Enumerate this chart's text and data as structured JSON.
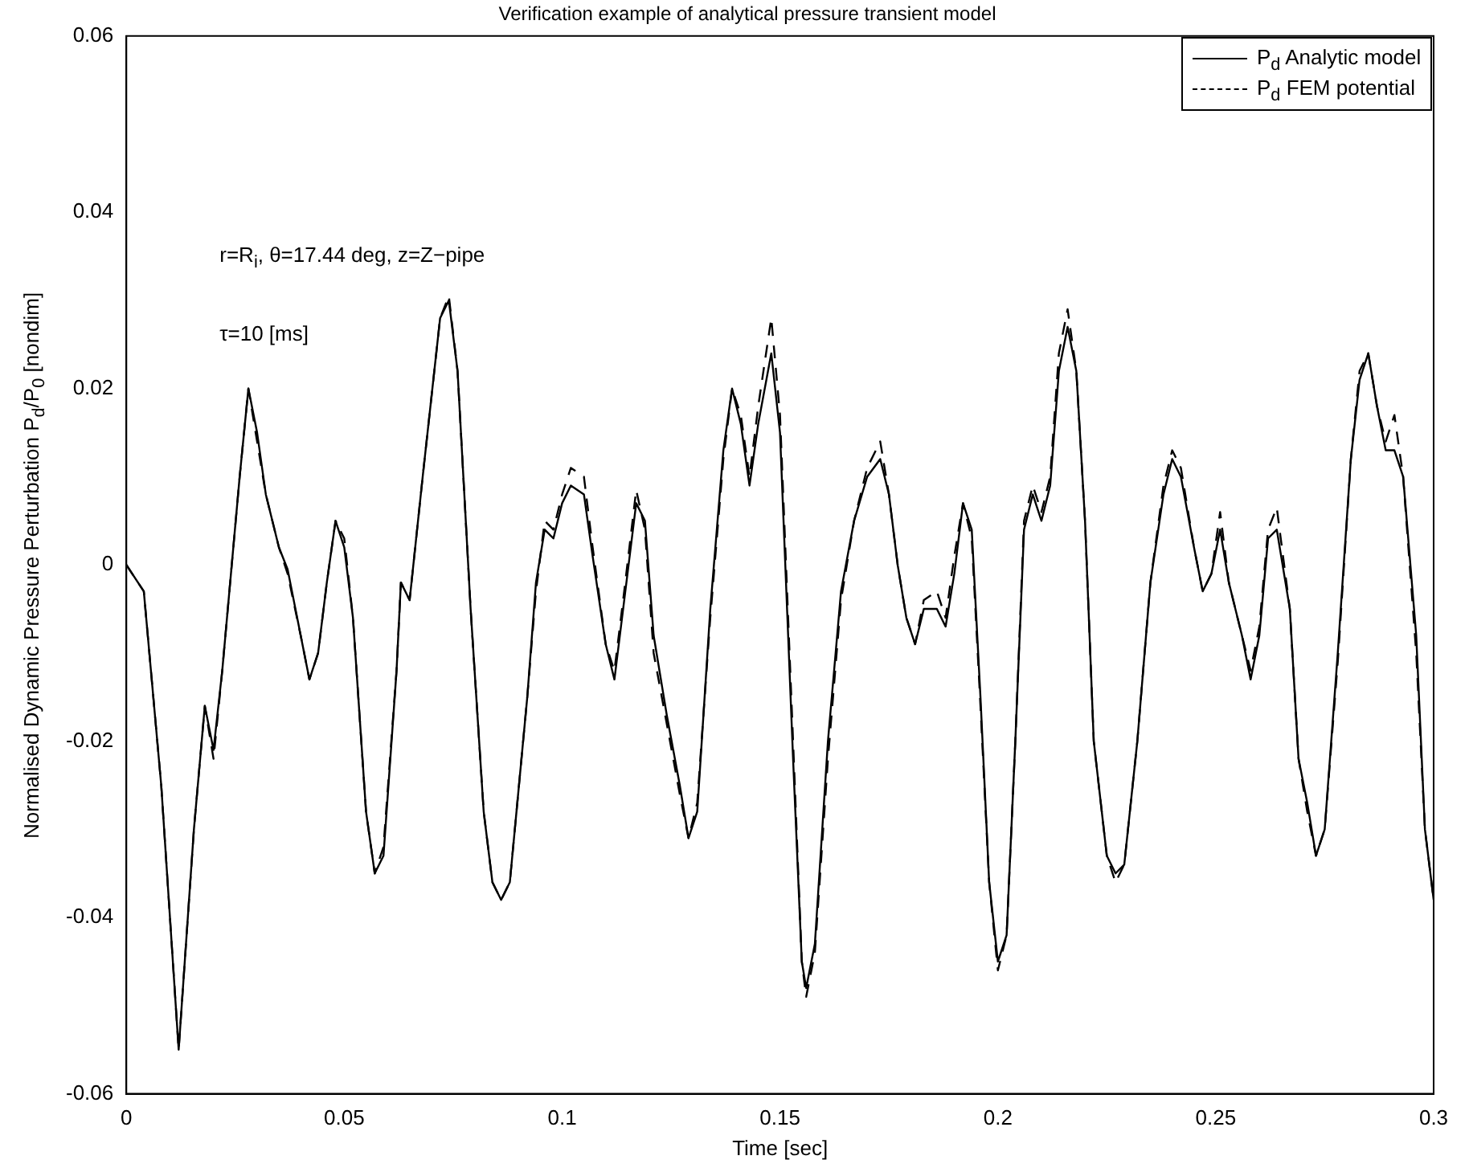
{
  "chart_data": {
    "type": "line",
    "title": "Verification example of analytical pressure transient model",
    "xlabel": "Time [sec]",
    "ylabel": "Normalised Dynamic Pressure  Perturbation   P$_{d}$/P$_{0}$  [nondim]",
    "annotations": [
      "r=R$_{i}$,  θ=17.44 deg, z=Z−pipe",
      "τ=10 [ms]"
    ],
    "x": [
      0,
      0.004,
      0.008,
      0.012,
      0.0155,
      0.018,
      0.02,
      0.022,
      0.026,
      0.028,
      0.03,
      0.032,
      0.035,
      0.037,
      0.04,
      0.042,
      0.044,
      0.046,
      0.048,
      0.05,
      0.052,
      0.055,
      0.057,
      0.059,
      0.062,
      0.063,
      0.065,
      0.068,
      0.072,
      0.074,
      0.076,
      0.079,
      0.082,
      0.084,
      0.086,
      0.088,
      0.092,
      0.094,
      0.096,
      0.098,
      0.1,
      0.102,
      0.105,
      0.107,
      0.11,
      0.112,
      0.114,
      0.117,
      0.119,
      0.121,
      0.124,
      0.127,
      0.129,
      0.131,
      0.134,
      0.137,
      0.139,
      0.141,
      0.143,
      0.145,
      0.148,
      0.15,
      0.153,
      0.155,
      0.156,
      0.158,
      0.161,
      0.164,
      0.167,
      0.17,
      0.173,
      0.175,
      0.177,
      0.179,
      0.181,
      0.183,
      0.186,
      0.188,
      0.19,
      0.192,
      0.194,
      0.196,
      0.198,
      0.2,
      0.202,
      0.204,
      0.206,
      0.208,
      0.21,
      0.212,
      0.214,
      0.216,
      0.218,
      0.22,
      0.222,
      0.225,
      0.227,
      0.229,
      0.232,
      0.235,
      0.238,
      0.24,
      0.242,
      0.245,
      0.247,
      0.249,
      0.251,
      0.253,
      0.256,
      0.258,
      0.26,
      0.262,
      0.264,
      0.267,
      0.269,
      0.271,
      0.273,
      0.275,
      0.278,
      0.281,
      0.283,
      0.285,
      0.287,
      0.289,
      0.291,
      0.293,
      0.296,
      0.298,
      0.3
    ],
    "series": [
      {
        "name": "P$_{d}$ Analytic model",
        "color": "#000000",
        "line_style": "solid",
        "values": [
          0,
          -0.003,
          -0.025,
          -0.055,
          -0.03,
          -0.016,
          -0.021,
          -0.012,
          0.01,
          0.02,
          0.015,
          0.008,
          0.002,
          -0.0005,
          -0.008,
          -0.013,
          -0.01,
          -0.002,
          0.005,
          0.002,
          -0.006,
          -0.028,
          -0.035,
          -0.033,
          -0.012,
          -0.002,
          -0.004,
          0.01,
          0.028,
          0.03,
          0.022,
          -0.005,
          -0.028,
          -0.036,
          -0.038,
          -0.036,
          -0.015,
          -0.002,
          0.004,
          0.003,
          0.007,
          0.009,
          0.008,
          0.001,
          -0.009,
          -0.013,
          -0.005,
          0.007,
          0.005,
          -0.008,
          -0.017,
          -0.025,
          -0.031,
          -0.028,
          -0.005,
          0.013,
          0.02,
          0.016,
          0.009,
          0.016,
          0.024,
          0.015,
          -0.022,
          -0.045,
          -0.048,
          -0.043,
          -0.02,
          -0.003,
          0.005,
          0.01,
          0.012,
          0.008,
          0,
          -0.006,
          -0.009,
          -0.005,
          -0.005,
          -0.007,
          -0.001,
          0.007,
          0.004,
          -0.015,
          -0.036,
          -0.045,
          -0.042,
          -0.02,
          0.004,
          0.008,
          0.005,
          0.009,
          0.022,
          0.027,
          0.022,
          0.005,
          -0.02,
          -0.033,
          -0.035,
          -0.034,
          -0.02,
          -0.002,
          0.008,
          0.012,
          0.01,
          0.002,
          -0.003,
          -0.001,
          0.004,
          -0.002,
          -0.008,
          -0.013,
          -0.008,
          0.003,
          0.004,
          -0.005,
          -0.022,
          -0.027,
          -0.033,
          -0.03,
          -0.01,
          0.012,
          0.021,
          0.024,
          0.018,
          0.013,
          0.013,
          0.01,
          -0.008,
          -0.03,
          -0.038
        ]
      },
      {
        "name": "P$_{d}$ FEM potential",
        "color": "#000000",
        "line_style": "dashed",
        "values": [
          0,
          -0.003,
          -0.025,
          -0.055,
          -0.03,
          -0.016,
          -0.022,
          -0.012,
          0.01,
          0.02,
          0.014,
          0.008,
          0.002,
          -0.001,
          -0.008,
          -0.013,
          -0.01,
          -0.002,
          0.005,
          0.003,
          -0.006,
          -0.028,
          -0.035,
          -0.032,
          -0.012,
          -0.002,
          -0.004,
          0.01,
          0.028,
          0.0305,
          0.022,
          -0.005,
          -0.028,
          -0.036,
          -0.038,
          -0.036,
          -0.015,
          -0.003,
          0.005,
          0.004,
          0.008,
          0.011,
          0.01,
          0.002,
          -0.009,
          -0.012,
          -0.004,
          0.0085,
          0.004,
          -0.01,
          -0.018,
          -0.026,
          -0.031,
          -0.027,
          -0.006,
          0.012,
          0.02,
          0.017,
          0.01,
          0.018,
          0.028,
          0.017,
          -0.02,
          -0.045,
          -0.049,
          -0.044,
          -0.022,
          -0.004,
          0.005,
          0.011,
          0.014,
          0.008,
          0,
          -0.006,
          -0.009,
          -0.004,
          -0.003,
          -0.006,
          0.001,
          0.007,
          0.003,
          -0.016,
          -0.036,
          -0.046,
          -0.042,
          -0.02,
          0.005,
          0.009,
          0.006,
          0.01,
          0.024,
          0.029,
          0.022,
          0.005,
          -0.02,
          -0.033,
          -0.036,
          -0.034,
          -0.02,
          -0.002,
          0.009,
          0.013,
          0.011,
          0.002,
          -0.003,
          -0.001,
          0.006,
          -0.002,
          -0.008,
          -0.012,
          -0.007,
          0.004,
          0.0065,
          -0.005,
          -0.022,
          -0.028,
          -0.033,
          -0.03,
          -0.011,
          0.012,
          0.022,
          0.024,
          0.018,
          0.014,
          0.017,
          0.01,
          -0.01,
          -0.03,
          -0.038
        ]
      }
    ],
    "xlim": [
      0,
      0.3
    ],
    "xticks": [
      0,
      0.05,
      0.1,
      0.15,
      0.2,
      0.25,
      0.3
    ],
    "ylim": [
      -0.06,
      0.06
    ],
    "yticks": [
      -0.06,
      -0.04,
      -0.02,
      0,
      0.02,
      0.04,
      0.06
    ],
    "grid": false,
    "legend": "top right",
    "marker": "none"
  }
}
